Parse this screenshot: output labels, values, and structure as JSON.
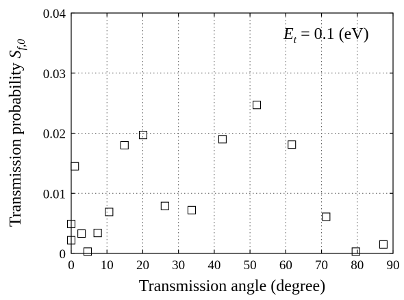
{
  "chart_data": {
    "type": "scatter",
    "xlabel": "Transmission angle (degree)",
    "ylabel": "Transmission probability",
    "ylabel_symbol": "S",
    "ylabel_subscript": "f,0",
    "annotation": {
      "symbol": "E",
      "subscript": "t",
      "text": " = 0.1 (eV)"
    },
    "xlim": [
      0,
      90
    ],
    "ylim": [
      0,
      0.04
    ],
    "x_ticks": [
      "0",
      "10",
      "20",
      "30",
      "40",
      "50",
      "60",
      "70",
      "80",
      "90"
    ],
    "y_ticks": [
      "0",
      "0.01",
      "0.02",
      "0.03",
      "0.04"
    ],
    "grid": true,
    "marker": "square",
    "series": [
      {
        "points": [
          {
            "x": 0,
            "y": 0.0022
          },
          {
            "x": 0,
            "y": 0.0049
          },
          {
            "x": 1,
            "y": 0.0145
          },
          {
            "x": 2.9,
            "y": 0.0033
          },
          {
            "x": 4.6,
            "y": 0.0003
          },
          {
            "x": 7.4,
            "y": 0.0034
          },
          {
            "x": 10.6,
            "y": 0.0069
          },
          {
            "x": 14.9,
            "y": 0.018
          },
          {
            "x": 20.1,
            "y": 0.0197
          },
          {
            "x": 26.2,
            "y": 0.0079
          },
          {
            "x": 33.7,
            "y": 0.0072
          },
          {
            "x": 42.3,
            "y": 0.019
          },
          {
            "x": 51.9,
            "y": 0.0247
          },
          {
            "x": 61.7,
            "y": 0.0181
          },
          {
            "x": 71.3,
            "y": 0.0061
          },
          {
            "x": 79.6,
            "y": 0.0003
          },
          {
            "x": 87.3,
            "y": 0.0015
          }
        ]
      }
    ]
  }
}
